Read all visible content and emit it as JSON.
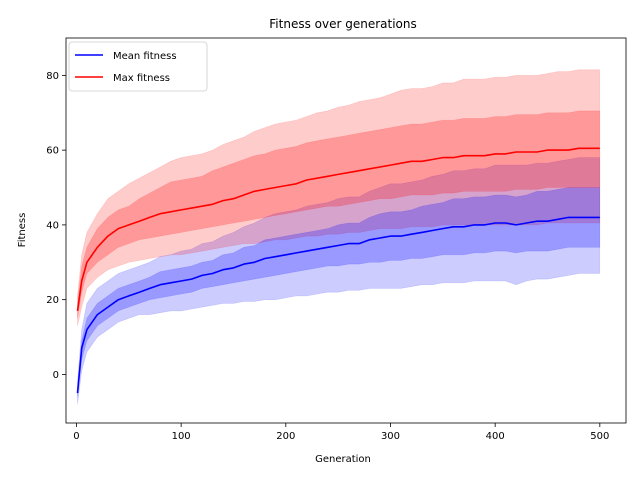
{
  "chart_data": {
    "type": "line",
    "title": "Fitness over generations",
    "xlabel": "Generation",
    "ylabel": "Fitness",
    "xlim": [
      -10,
      525
    ],
    "ylim": [
      -13,
      90
    ],
    "xticks": [
      0,
      100,
      200,
      300,
      400,
      500
    ],
    "yticks": [
      0,
      20,
      40,
      60,
      80
    ],
    "legend": {
      "placement": "top-left"
    },
    "grid": false,
    "x": [
      1,
      5,
      10,
      20,
      30,
      40,
      50,
      60,
      70,
      80,
      90,
      100,
      110,
      120,
      130,
      140,
      150,
      160,
      170,
      180,
      190,
      200,
      210,
      220,
      230,
      240,
      250,
      260,
      270,
      280,
      290,
      300,
      310,
      320,
      330,
      340,
      350,
      360,
      370,
      380,
      390,
      400,
      410,
      420,
      430,
      440,
      450,
      460,
      470,
      480,
      490,
      500
    ],
    "series": [
      {
        "name": "Mean fitness",
        "color": "#0000ff",
        "values": [
          -5,
          7,
          12,
          16,
          18,
          20,
          21,
          22,
          23,
          24,
          24.5,
          25,
          25.5,
          26.5,
          27,
          28,
          28.5,
          29.5,
          30,
          31,
          31.5,
          32,
          32.5,
          33,
          33.5,
          34,
          34.5,
          35,
          35,
          36,
          36.5,
          37,
          37,
          37.5,
          38,
          38.5,
          39,
          39.5,
          39.5,
          40,
          40,
          40.5,
          40.5,
          40,
          40.5,
          41,
          41,
          41.5,
          42,
          42,
          42,
          42
        ],
        "band_inner": [
          [
            -6,
            -4
          ],
          [
            4,
            9
          ],
          [
            9,
            15
          ],
          [
            13,
            19
          ],
          [
            15,
            21
          ],
          [
            17,
            23
          ],
          [
            18,
            24
          ],
          [
            19,
            25
          ],
          [
            20,
            26
          ],
          [
            20.5,
            27.5
          ],
          [
            21,
            28
          ],
          [
            21.5,
            28.5
          ],
          [
            22,
            29
          ],
          [
            23,
            30
          ],
          [
            23.5,
            30.5
          ],
          [
            24,
            32
          ],
          [
            24.5,
            32.5
          ],
          [
            25,
            34
          ],
          [
            25.5,
            34.5
          ],
          [
            26,
            36
          ],
          [
            26.5,
            36.5
          ],
          [
            27,
            37
          ],
          [
            27.5,
            37.5
          ],
          [
            28,
            38
          ],
          [
            28.5,
            38.5
          ],
          [
            29,
            39
          ],
          [
            29,
            40
          ],
          [
            29.5,
            40.5
          ],
          [
            29.5,
            40.5
          ],
          [
            30,
            42
          ],
          [
            30,
            43
          ],
          [
            30.5,
            43.5
          ],
          [
            30.5,
            43.5
          ],
          [
            31,
            44
          ],
          [
            31,
            45
          ],
          [
            31.5,
            45.5
          ],
          [
            32,
            46
          ],
          [
            32,
            47
          ],
          [
            32,
            47
          ],
          [
            32.5,
            47.5
          ],
          [
            32.5,
            47.5
          ],
          [
            33,
            48
          ],
          [
            33,
            48
          ],
          [
            32.5,
            47.5
          ],
          [
            33,
            48
          ],
          [
            33,
            49
          ],
          [
            33,
            49
          ],
          [
            33.5,
            49.5
          ],
          [
            34,
            50
          ],
          [
            34,
            50
          ],
          [
            34,
            50
          ],
          [
            34,
            50
          ]
        ],
        "band_outer": [
          [
            -8,
            -2
          ],
          [
            1,
            12
          ],
          [
            6,
            19
          ],
          [
            10,
            23
          ],
          [
            12,
            25
          ],
          [
            14,
            27
          ],
          [
            15,
            28
          ],
          [
            16,
            29
          ],
          [
            16,
            30
          ],
          [
            16.5,
            31.5
          ],
          [
            17,
            32
          ],
          [
            17,
            33
          ],
          [
            17.5,
            33.5
          ],
          [
            18,
            35
          ],
          [
            18.5,
            35.5
          ],
          [
            19,
            37
          ],
          [
            19,
            38
          ],
          [
            19.5,
            39.5
          ],
          [
            19.5,
            40.5
          ],
          [
            20,
            42
          ],
          [
            20,
            43
          ],
          [
            20.5,
            43.5
          ],
          [
            21,
            44
          ],
          [
            21,
            45
          ],
          [
            21.5,
            45.5
          ],
          [
            22,
            46
          ],
          [
            22,
            47
          ],
          [
            22.5,
            47.5
          ],
          [
            22.5,
            47.5
          ],
          [
            23,
            49
          ],
          [
            23,
            50
          ],
          [
            23,
            51
          ],
          [
            23,
            51
          ],
          [
            23.5,
            51.5
          ],
          [
            24,
            52
          ],
          [
            24,
            53
          ],
          [
            24.5,
            53.5
          ],
          [
            24.5,
            54.5
          ],
          [
            24.5,
            54.5
          ],
          [
            25,
            55
          ],
          [
            25,
            55
          ],
          [
            25,
            56
          ],
          [
            25,
            56
          ],
          [
            24,
            56
          ],
          [
            25,
            56
          ],
          [
            25.5,
            56.5
          ],
          [
            25.5,
            56.5
          ],
          [
            26,
            57
          ],
          [
            26.5,
            57.5
          ],
          [
            27,
            58
          ],
          [
            27,
            58
          ],
          [
            27,
            58
          ]
        ]
      },
      {
        "name": "Max fitness",
        "color": "#ff0000",
        "values": [
          17,
          25,
          30,
          34,
          37,
          39,
          40,
          41,
          42,
          43,
          43.5,
          44,
          44.5,
          45,
          45.5,
          46.5,
          47,
          48,
          49,
          49.5,
          50,
          50.5,
          51,
          52,
          52.5,
          53,
          53.5,
          54,
          54.5,
          55,
          55.5,
          56,
          56.5,
          57,
          57,
          57.5,
          58,
          58,
          58.5,
          58.5,
          58.5,
          59,
          59,
          59.5,
          59.5,
          59.5,
          60,
          60,
          60,
          60.5,
          60.5,
          60.5
        ],
        "band_inner": [
          [
            15,
            19
          ],
          [
            22,
            29
          ],
          [
            27,
            34
          ],
          [
            30,
            39
          ],
          [
            32,
            42
          ],
          [
            34,
            44
          ],
          [
            35,
            45
          ],
          [
            36,
            47
          ],
          [
            36.5,
            48.5
          ],
          [
            37,
            50
          ],
          [
            37.5,
            51.5
          ],
          [
            38,
            52
          ],
          [
            38.5,
            52.5
          ],
          [
            39,
            53
          ],
          [
            39.5,
            54.5
          ],
          [
            40,
            55.5
          ],
          [
            40.5,
            56.5
          ],
          [
            41,
            57.5
          ],
          [
            41.5,
            58.5
          ],
          [
            42,
            59
          ],
          [
            42.5,
            60
          ],
          [
            43,
            60.5
          ],
          [
            43.5,
            61
          ],
          [
            44,
            62
          ],
          [
            44.5,
            62.5
          ],
          [
            45,
            63
          ],
          [
            45,
            63.5
          ],
          [
            45.5,
            64
          ],
          [
            46,
            64.5
          ],
          [
            46.5,
            65
          ],
          [
            47,
            65.5
          ],
          [
            47,
            66
          ],
          [
            47.5,
            66.5
          ],
          [
            48,
            67
          ],
          [
            48,
            67
          ],
          [
            48,
            67.5
          ],
          [
            48.5,
            68
          ],
          [
            48.5,
            68
          ],
          [
            49,
            68.5
          ],
          [
            49,
            68.5
          ],
          [
            49,
            68.5
          ],
          [
            49,
            69
          ],
          [
            49,
            69
          ],
          [
            49.5,
            69.5
          ],
          [
            49.5,
            69.5
          ],
          [
            49.5,
            69.5
          ],
          [
            50,
            70
          ],
          [
            50,
            70
          ],
          [
            50,
            70
          ],
          [
            50,
            70.5
          ],
          [
            50,
            70.5
          ],
          [
            50,
            70.5
          ]
        ],
        "band_outer": [
          [
            13,
            21
          ],
          [
            18,
            32
          ],
          [
            23,
            38
          ],
          [
            26,
            43
          ],
          [
            28,
            47
          ],
          [
            29,
            49
          ],
          [
            30,
            51
          ],
          [
            30.5,
            52.5
          ],
          [
            31,
            54
          ],
          [
            31.5,
            55.5
          ],
          [
            32,
            57
          ],
          [
            32,
            58
          ],
          [
            32.5,
            58.5
          ],
          [
            33,
            59
          ],
          [
            33.5,
            60
          ],
          [
            34,
            61.5
          ],
          [
            34.5,
            62.5
          ],
          [
            35,
            63.5
          ],
          [
            35,
            65
          ],
          [
            35.5,
            66
          ],
          [
            36,
            67
          ],
          [
            36,
            67.5
          ],
          [
            36.5,
            68
          ],
          [
            37,
            69
          ],
          [
            37,
            70
          ],
          [
            37.5,
            70.5
          ],
          [
            37.5,
            71.5
          ],
          [
            38,
            72
          ],
          [
            38,
            73
          ],
          [
            38.5,
            73.5
          ],
          [
            39,
            74
          ],
          [
            39,
            75
          ],
          [
            39,
            76
          ],
          [
            39.5,
            76.5
          ],
          [
            39.5,
            76.5
          ],
          [
            39.5,
            77
          ],
          [
            40,
            78
          ],
          [
            40,
            78
          ],
          [
            40,
            79
          ],
          [
            40,
            79
          ],
          [
            40,
            79
          ],
          [
            40,
            79.5
          ],
          [
            40,
            79.5
          ],
          [
            40,
            80
          ],
          [
            40,
            80
          ],
          [
            40,
            80
          ],
          [
            40.5,
            80.5
          ],
          [
            40.5,
            81
          ],
          [
            40.5,
            81
          ],
          [
            40.5,
            81.5
          ],
          [
            40.5,
            81.5
          ],
          [
            40.5,
            81.5
          ]
        ]
      }
    ]
  }
}
